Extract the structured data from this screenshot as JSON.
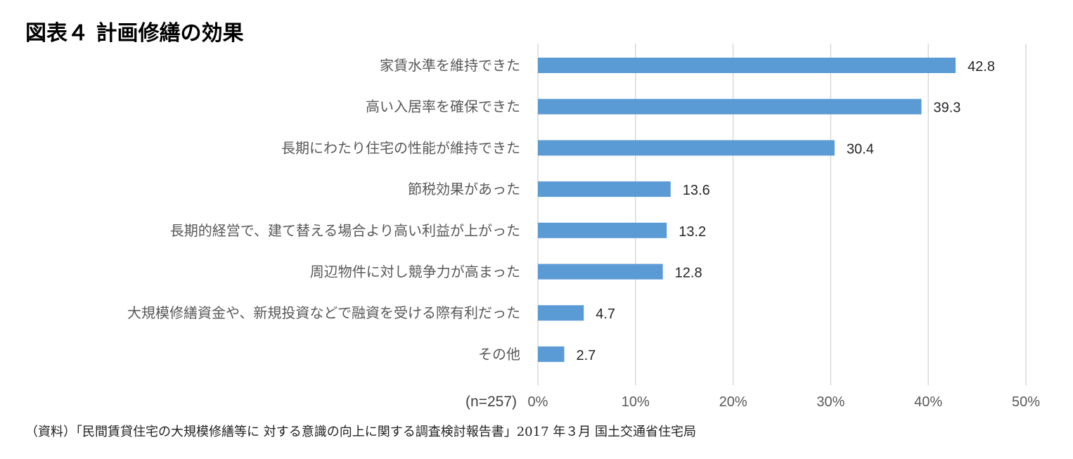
{
  "title": "図表４ 計画修繕の効果",
  "chart_data": {
    "type": "bar",
    "orientation": "horizontal",
    "categories": [
      "家賃水準を維持できた",
      "高い入居率を確保できた",
      "長期にわたり住宅の性能が維持できた",
      "節税効果があった",
      "長期的経営で、建て替える場合より高い利益が上がった",
      "周辺物件に対し競争力が高まった",
      "大規模修繕資金や、新規投資などで融資を受ける際有利だった",
      "その他"
    ],
    "values": [
      42.8,
      39.3,
      30.4,
      13.6,
      13.2,
      12.8,
      4.7,
      2.7
    ],
    "data_labels": [
      "42.8",
      "39.3",
      "30.4",
      "13.6",
      "13.2",
      "12.8",
      "4.7",
      "2.7"
    ],
    "xlim": [
      0,
      50
    ],
    "xticks": [
      0,
      10,
      20,
      30,
      40,
      50
    ],
    "xtick_labels": [
      "0%",
      "10%",
      "20%",
      "30%",
      "40%",
      "50%"
    ],
    "axis_note": "(n=257)",
    "grid": true,
    "bar_color": "#5b9bd5"
  },
  "source": "（資料）「民間賃貸住宅の大規模修繕等に 対する意識の向上に関する調査検討報告書」2017 年３月 国土交通省住宅局"
}
